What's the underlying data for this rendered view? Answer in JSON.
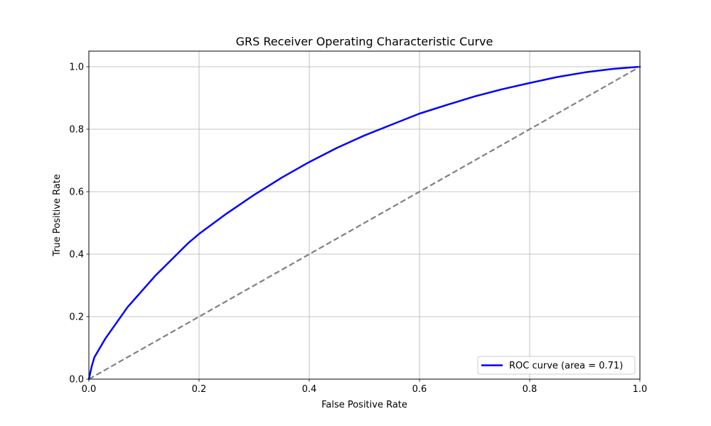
{
  "chart_data": {
    "type": "line",
    "title": "GRS Receiver Operating Characteristic Curve",
    "xlabel": "False Positive Rate",
    "ylabel": "True Positive Rate",
    "xlim": [
      0.0,
      1.0
    ],
    "ylim": [
      0.0,
      1.05
    ],
    "xticks": [
      0.0,
      0.2,
      0.4,
      0.6,
      0.8,
      1.0
    ],
    "yticks": [
      0.0,
      0.2,
      0.4,
      0.6,
      0.8,
      1.0
    ],
    "xtick_labels": [
      "0.0",
      "0.2",
      "0.4",
      "0.6",
      "0.8",
      "1.0"
    ],
    "ytick_labels": [
      "0.0",
      "0.2",
      "0.4",
      "0.6",
      "0.8",
      "1.0"
    ],
    "grid": true,
    "legend_position": "lower-right",
    "series": [
      {
        "name": "ROC curve (area = 0.71)",
        "color": "#0000ff",
        "style": "solid",
        "x": [
          0.0,
          0.005,
          0.01,
          0.02,
          0.03,
          0.04,
          0.05,
          0.06,
          0.07,
          0.08,
          0.1,
          0.12,
          0.14,
          0.16,
          0.18,
          0.2,
          0.25,
          0.3,
          0.35,
          0.4,
          0.45,
          0.5,
          0.55,
          0.6,
          0.65,
          0.7,
          0.75,
          0.8,
          0.85,
          0.9,
          0.95,
          1.0
        ],
        "y": [
          0.0,
          0.04,
          0.07,
          0.1,
          0.13,
          0.155,
          0.18,
          0.205,
          0.23,
          0.25,
          0.29,
          0.33,
          0.365,
          0.4,
          0.435,
          0.465,
          0.53,
          0.59,
          0.645,
          0.695,
          0.74,
          0.78,
          0.815,
          0.85,
          0.878,
          0.905,
          0.928,
          0.948,
          0.967,
          0.982,
          0.993,
          1.0
        ]
      },
      {
        "color": "#808080",
        "style": "dashed",
        "x": [
          0.0,
          1.0
        ],
        "y": [
          0.0,
          1.0
        ]
      }
    ]
  }
}
